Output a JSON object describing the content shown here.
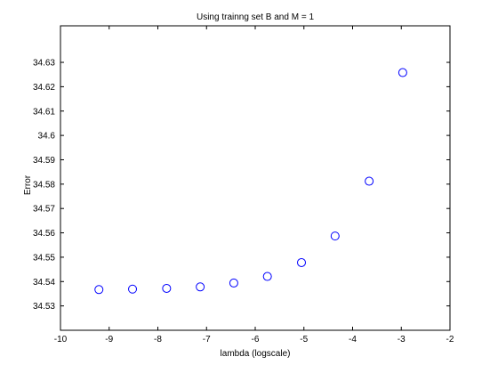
{
  "chart_data": {
    "type": "scatter",
    "title": "Using trainng set B and M = 1",
    "xlabel": "lambda (logscale)",
    "ylabel": "Error",
    "xlim": [
      -10,
      -2
    ],
    "ylim": [
      34.52,
      34.645
    ],
    "x_ticks": [
      -10,
      -9,
      -8,
      -7,
      -6,
      -5,
      -4,
      -3,
      -2
    ],
    "y_ticks": [
      34.53,
      34.54,
      34.55,
      34.56,
      34.57,
      34.58,
      34.59,
      34.6,
      34.61,
      34.62,
      34.63
    ],
    "x_tick_labels": [
      "-10",
      "-9",
      "-8",
      "-7",
      "-6",
      "-5",
      "-4",
      "-3",
      "-2"
    ],
    "y_tick_labels": [
      "34.53",
      "34.54",
      "34.55",
      "34.56",
      "34.57",
      "34.58",
      "34.59",
      "34.6",
      "34.61",
      "34.62",
      "34.63"
    ],
    "grid": false,
    "marker": "open-circle",
    "marker_color": "#0000ff",
    "series": [
      {
        "x": [
          -9.21,
          -8.52,
          -7.82,
          -7.13,
          -6.44,
          -5.75,
          -5.05,
          -4.36,
          -3.66,
          -2.97
        ],
        "y": [
          34.5367,
          34.5369,
          34.5372,
          34.5378,
          34.5394,
          34.5421,
          34.5478,
          34.5587,
          34.5812,
          34.6258
        ]
      }
    ]
  }
}
